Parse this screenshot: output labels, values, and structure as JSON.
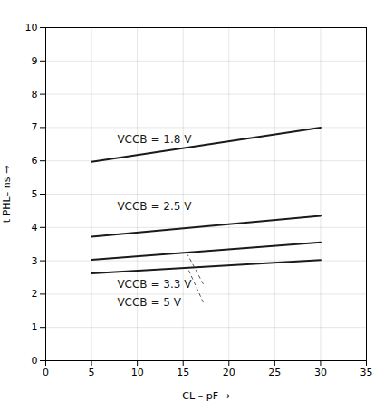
{
  "chart_data": {
    "type": "line",
    "x": [
      5,
      30
    ],
    "series": [
      {
        "values": [
          5.97,
          7.0
        ],
        "color": "#1a1a1a"
      },
      {
        "values": [
          3.72,
          4.35
        ],
        "color": "#1a1a1a"
      },
      {
        "values": [
          3.03,
          3.55
        ],
        "color": "#1a1a1a"
      },
      {
        "values": [
          2.62,
          3.02
        ],
        "color": "#1a1a1a"
      }
    ],
    "annotations": [
      {
        "text": "VCCB = 1.8 V",
        "x": 7.8,
        "y": 6.65
      },
      {
        "text": "VCCB = 2.5 V",
        "x": 7.8,
        "y": 4.62
      },
      {
        "text": "VCCB = 3.3 V",
        "x": 7.8,
        "y": 2.3
      },
      {
        "text": "VCCB = 5 V",
        "x": 7.8,
        "y": 1.75
      }
    ],
    "pointers": [
      {
        "x1": 17.2,
        "y1": 2.3,
        "x2": 15.5,
        "y2": 3.18
      },
      {
        "x1": 17.2,
        "y1": 1.75,
        "x2": 15.5,
        "y2": 2.78
      }
    ],
    "xlim": [
      0,
      35
    ],
    "ylim": [
      0,
      10
    ],
    "xticks": [
      0,
      5,
      10,
      15,
      20,
      25,
      30,
      35
    ],
    "yticks": [
      0,
      1,
      2,
      3,
      4,
      5,
      6,
      7,
      8,
      9,
      10
    ],
    "xlabel": "CL – pF",
    "ylabel": "t PHL– ns",
    "grid": true
  }
}
